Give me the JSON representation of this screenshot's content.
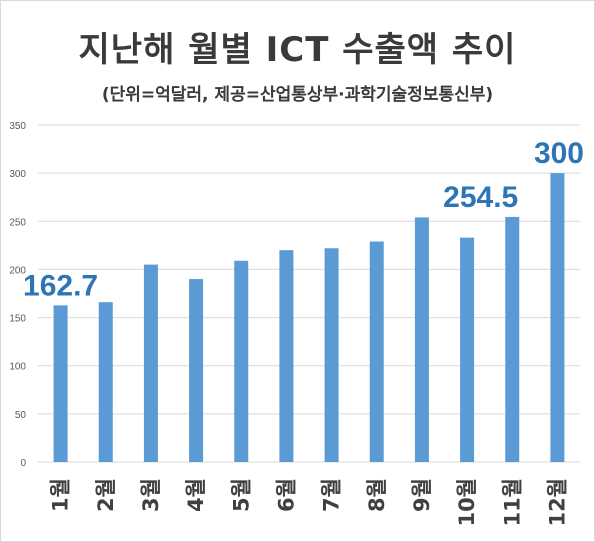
{
  "title": "지난해 월별 ICT 수출액 추이",
  "subtitle": "(단위=억달러, 제공=산업통상부·과학기술정보통신부)",
  "colors": {
    "bar": "#5b9bd5",
    "data_label": "#2e75b6",
    "grid": "#d9d9d9"
  },
  "chart_data": {
    "type": "bar",
    "title": "지난해 월별 ICT 수출액 추이",
    "subtitle": "(단위=억달러, 제공=산업통상부·과학기술정보통신부)",
    "categories": [
      "1월",
      "2월",
      "3월",
      "4월",
      "5월",
      "6월",
      "7월",
      "8월",
      "9월",
      "10월",
      "11월",
      "12월"
    ],
    "values": [
      162.7,
      166,
      205,
      190,
      209,
      220,
      222,
      229,
      254,
      233,
      254.5,
      300
    ],
    "data_labels": [
      {
        "index": 0,
        "text": "162.7"
      },
      {
        "index": 10,
        "text": "254.5"
      },
      {
        "index": 11,
        "text": "300"
      }
    ],
    "ylim": [
      0,
      350
    ],
    "yticks": [
      0,
      50,
      100,
      150,
      200,
      250,
      300,
      350
    ],
    "grid": true,
    "legend": "none",
    "xlabel": "",
    "ylabel": ""
  }
}
